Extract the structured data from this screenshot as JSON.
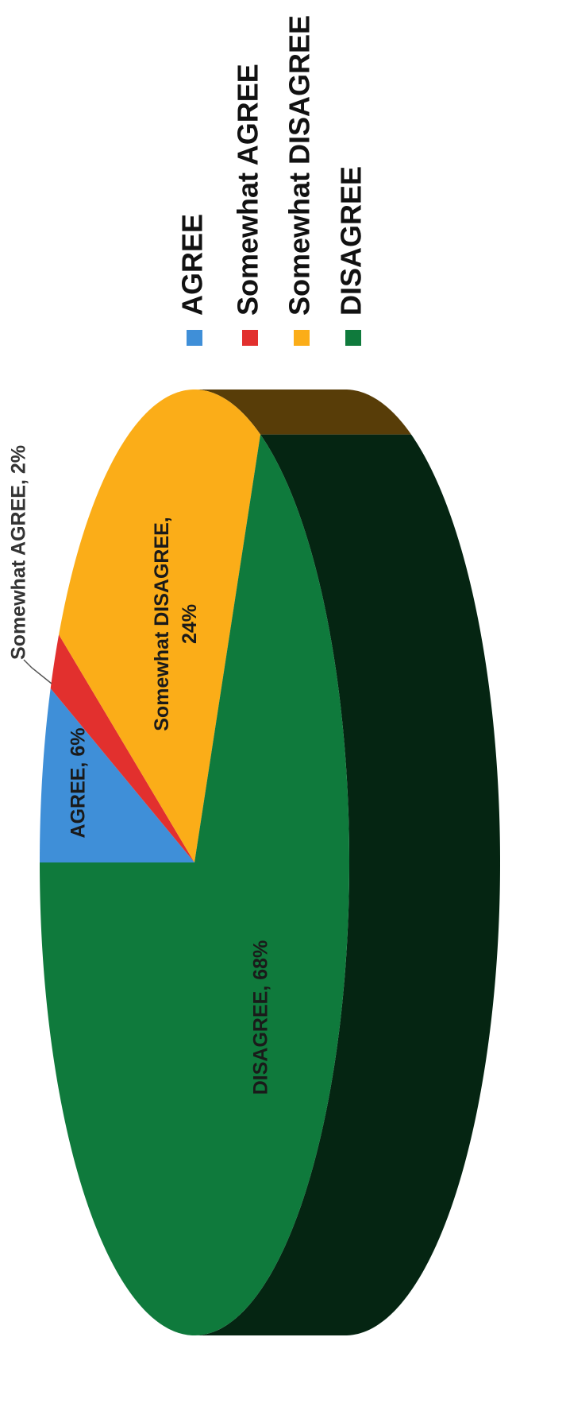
{
  "chart_data": {
    "type": "pie",
    "categories": [
      "AGREE",
      "Somewhat AGREE",
      "Somewhat DISAGREE",
      "DISAGREE"
    ],
    "values": [
      6,
      2,
      24,
      68
    ],
    "value_labels": [
      "AGREE, 6%",
      "Somewhat AGREE, 2%",
      "Somewhat DISAGREE, 24%",
      "DISAGREE, 68%"
    ],
    "colors": [
      "#3f8fd8",
      "#e2302e",
      "#fbad18",
      "#0f7a3c"
    ],
    "legend": "right"
  }
}
